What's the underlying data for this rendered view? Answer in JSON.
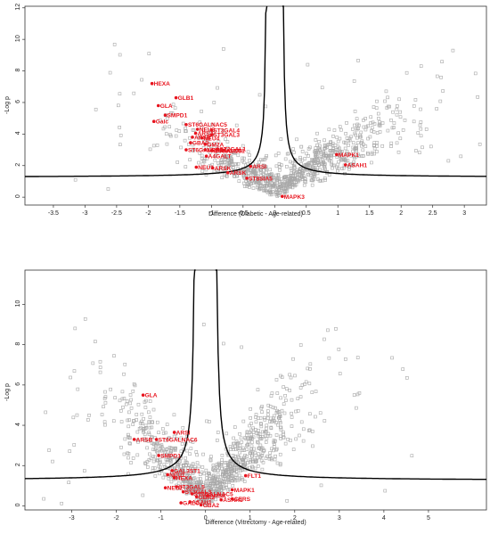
{
  "chart_data": [
    {
      "type": "scatter",
      "title": "",
      "xlabel": "Difference (Diabetic - Age-related)",
      "ylabel": "-Log p",
      "xlim": [
        -3.95,
        3.35
      ],
      "ylim": [
        -0.5,
        12.1
      ],
      "xticks": [
        -3.5,
        -3,
        -2.5,
        -2,
        -1.5,
        -1,
        -0.5,
        0,
        0.5,
        1,
        1.5,
        2,
        2.5,
        3
      ],
      "yticks": [
        0,
        2,
        4,
        6,
        8,
        10,
        12
      ],
      "colors": {
        "background_points": "#a8a8a8",
        "highlight": "#e8141e",
        "curve": "#000000"
      },
      "volcano_threshold": {
        "s0": 0.12,
        "c": 0.22
      },
      "highlighted_genes": [
        {
          "name": "HEXA",
          "x": -1.94,
          "y": 7.2
        },
        {
          "name": "GLB1",
          "x": -1.56,
          "y": 6.3
        },
        {
          "name": "GLA",
          "x": -1.84,
          "y": 5.8
        },
        {
          "name": "SMPD1",
          "x": -1.73,
          "y": 5.2
        },
        {
          "name": "Galc",
          "x": -1.91,
          "y": 4.8
        },
        {
          "name": "ST6GALNAC5",
          "x": -1.4,
          "y": 4.6
        },
        {
          "name": "NEU3",
          "x": -1.22,
          "y": 4.3
        },
        {
          "name": "ST3GAL4",
          "x": -1.0,
          "y": 4.25
        },
        {
          "name": "ARSA",
          "x": -1.25,
          "y": 4.05
        },
        {
          "name": "ST3GAL3",
          "x": -1.0,
          "y": 3.95
        },
        {
          "name": "ARSB",
          "x": -1.3,
          "y": 3.8
        },
        {
          "name": "NEU4",
          "x": -1.15,
          "y": 3.75
        },
        {
          "name": "GBA2",
          "x": -1.33,
          "y": 3.45
        },
        {
          "name": "GM2A",
          "x": -1.1,
          "y": 3.35
        },
        {
          "name": "ST6GALNAC6",
          "x": -1.4,
          "y": 3.0
        },
        {
          "name": "NEU2",
          "x": -1.1,
          "y": 3.0
        },
        {
          "name": "B4GALNT1",
          "x": -0.99,
          "y": 2.95
        },
        {
          "name": "ST3GAL1",
          "x": -0.9,
          "y": 3.05
        },
        {
          "name": "UGCG",
          "x": -0.82,
          "y": 2.95
        },
        {
          "name": "A4GALT",
          "x": -1.08,
          "y": 2.6
        },
        {
          "name": "NEU1",
          "x": -1.24,
          "y": 1.9
        },
        {
          "name": "ARSK",
          "x": -0.98,
          "y": 1.85
        },
        {
          "name": "ARSI",
          "x": -0.38,
          "y": 1.95
        },
        {
          "name": "ARSK",
          "x": -0.74,
          "y": 1.55
        },
        {
          "name": "ST8SIA5",
          "x": -0.44,
          "y": 1.2
        },
        {
          "name": "MAPK1",
          "x": 0.98,
          "y": 2.7
        },
        {
          "name": "ASAH1",
          "x": 1.12,
          "y": 2.05
        },
        {
          "name": "MAPK3",
          "x": 0.12,
          "y": 0.05
        }
      ]
    },
    {
      "type": "scatter",
      "title": "",
      "xlabel": "Difference (Vitrectomy - Age-related)",
      "ylabel": "-Log p",
      "xlim": [
        -4.05,
        6.3
      ],
      "ylim": [
        -0.2,
        11.7
      ],
      "xticks": [
        -3,
        -2,
        -1,
        0,
        1,
        2,
        3,
        4,
        5
      ],
      "yticks": [
        0,
        2,
        4,
        6,
        8,
        10
      ],
      "colors": {
        "background_points": "#a8a8a8",
        "highlight": "#e8141e",
        "curve": "#000000"
      },
      "volcano_threshold": {
        "s0": 0.22,
        "c": 0.4
      },
      "highlighted_genes": [
        {
          "name": "GLA",
          "x": -1.4,
          "y": 5.5
        },
        {
          "name": "ARSI",
          "x": -0.7,
          "y": 3.65
        },
        {
          "name": "ARSB",
          "x": -1.6,
          "y": 3.3
        },
        {
          "name": "ST6GALNAC6",
          "x": -1.1,
          "y": 3.3
        },
        {
          "name": "SMPD1",
          "x": -1.05,
          "y": 2.5
        },
        {
          "name": "GAL3ST1",
          "x": -0.75,
          "y": 1.75
        },
        {
          "name": "NEU1",
          "x": -0.85,
          "y": 1.55
        },
        {
          "name": "HEXA",
          "x": -0.7,
          "y": 1.4
        },
        {
          "name": "ST3GAL5",
          "x": -0.65,
          "y": 0.95
        },
        {
          "name": "NEU2",
          "x": -0.9,
          "y": 0.9
        },
        {
          "name": "ST3GAL3",
          "x": -0.5,
          "y": 0.7
        },
        {
          "name": "ST6GALNAC5",
          "x": -0.3,
          "y": 0.6
        },
        {
          "name": "GBA2",
          "x": -0.2,
          "y": 0.45
        },
        {
          "name": "ASAH1",
          "x": -0.35,
          "y": 0.2
        },
        {
          "name": "ARSK",
          "x": 0.05,
          "y": 0.5
        },
        {
          "name": "FLT1",
          "x": 0.9,
          "y": 1.5
        },
        {
          "name": "MAPK1",
          "x": 0.6,
          "y": 0.8
        },
        {
          "name": "ASAH1",
          "x": 0.35,
          "y": 0.3
        },
        {
          "name": "CERS",
          "x": 0.6,
          "y": 0.35
        },
        {
          "name": "GALC",
          "x": -0.55,
          "y": 0.15
        },
        {
          "name": "GBA2",
          "x": -0.1,
          "y": 0.05
        }
      ]
    }
  ]
}
